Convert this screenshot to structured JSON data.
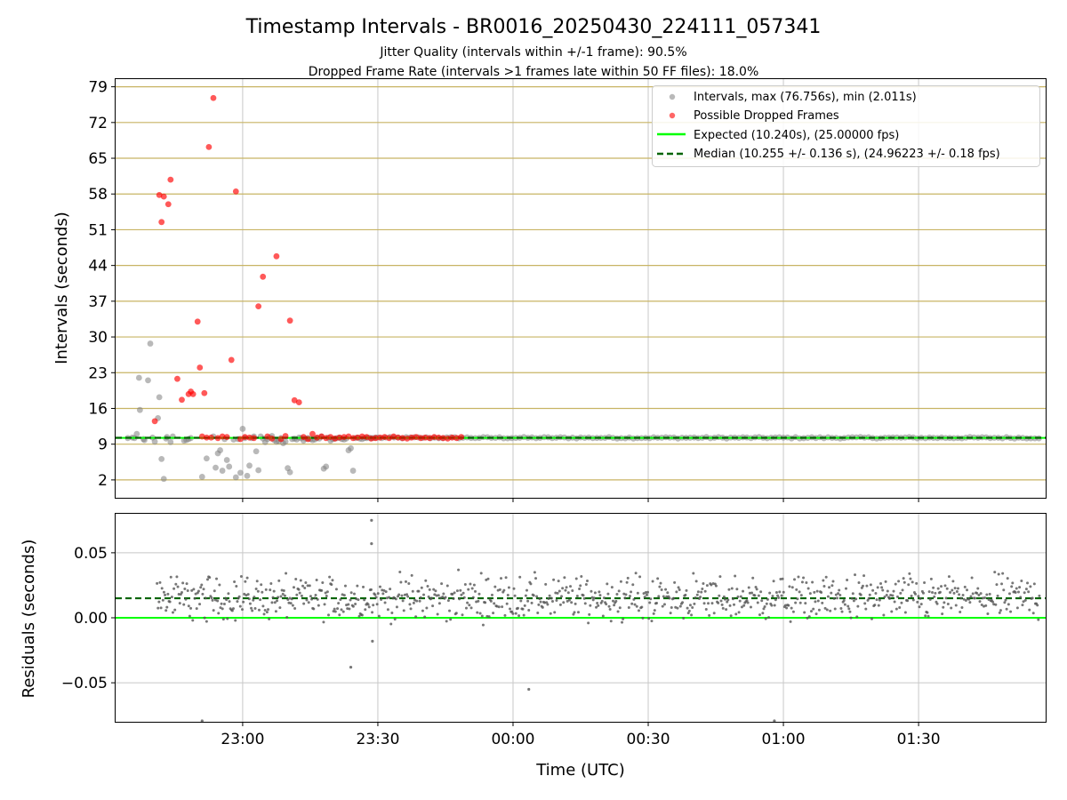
{
  "title": "Timestamp Intervals - BR0016_20250430_224111_057341",
  "subtitle1": "Jitter Quality (intervals within +/-1 frame): 90.5%",
  "subtitle2": "Dropped Frame Rate (intervals >1 frames late within 50 FF files): 18.0%",
  "colors": {
    "intervals": "#808080",
    "dropped": "#ff0000",
    "expected": "#00ff00",
    "median": "#006400",
    "hgrid_top": "#c8b464",
    "grid": "#c8c8c8",
    "residuals": "#555555"
  },
  "chart_data": [
    {
      "type": "scatter",
      "ylabel": "Intervals (seconds)",
      "ylim": [
        -1.5,
        80.5
      ],
      "y_ticks": [
        "2",
        "9",
        "16",
        "23",
        "30",
        "37",
        "44",
        "51",
        "58",
        "65",
        "72",
        "79"
      ],
      "grid": true,
      "legend_placement": "top-right",
      "legend": [
        "Intervals, max (76.756s), min (2.011s)",
        "Possible Dropped Frames",
        "Expected (10.240s), (25.00000 fps)",
        "Median (10.255 +/- 0.136 s), (24.96223 +/- 0.18 fps)"
      ],
      "expected_interval": 10.24,
      "median_interval": 10.255,
      "series": [
        {
          "name": "Intervals, max (76.756s), min (2.011s)",
          "x_minutes": [
            -25.5,
            -24.5,
            -24,
            -23.5,
            -23,
            -22.8,
            -22,
            -21.8,
            -21,
            -20.5,
            -20,
            -19.5,
            -18.8,
            -18.5,
            -18,
            -17.5,
            -17,
            -16.8,
            -16,
            -15.5,
            -13,
            -12.5,
            -12,
            -11.5,
            -9,
            -8,
            -6.5,
            -6,
            -5.5,
            -5,
            -4.5,
            -4,
            -3.5,
            -3,
            -2,
            -1.5,
            -1,
            -0.5,
            0,
            0.5,
            1,
            1.5,
            2,
            2.5,
            3,
            3.5,
            4,
            4.5,
            5,
            5.5,
            6,
            6.5,
            7,
            7.5,
            8,
            8.5,
            9,
            9.5,
            10,
            10.5,
            11,
            11.5,
            12,
            12.5,
            13,
            13.5,
            14,
            14.5,
            15,
            15.5,
            16,
            16.5,
            17,
            17.5,
            18,
            18.5,
            19,
            19.5,
            20,
            20.5,
            21,
            21.5,
            22,
            22.5,
            23,
            23.5,
            24,
            24.5,
            25,
            25.5,
            26,
            26.5,
            27,
            27.5,
            28,
            28.5,
            29,
            29.5
          ],
          "y_seconds": [
            10.2,
            10.3,
            10.2,
            11.0,
            22.0,
            15.7,
            10.0,
            9.8,
            21.5,
            28.7,
            10.3,
            9.5,
            14.1,
            18.2,
            6.1,
            2.2,
            10.1,
            10.4,
            9.4,
            10.5,
            9.7,
            9.8,
            10.0,
            10.2,
            2.6,
            6.2,
            10.5,
            4.4,
            7.2,
            7.8,
            3.8,
            10.0,
            5.9,
            4.6,
            9.9,
            2.5,
            10.0,
            3.4,
            12.0,
            10.2,
            2.8,
            4.8,
            10.2,
            10.5,
            7.6,
            3.9,
            10.5,
            10.1,
            9.4,
            10.0,
            10.3,
            10.6,
            9.8,
            9.5,
            9.6,
            10.2,
            9.2,
            9.5,
            4.3,
            3.5,
            10.0,
            10.1,
            9.9,
            10.3,
            10.2,
            9.7,
            10.1,
            10.2,
            10.0,
            9.8,
            9.9,
            10.2,
            10.1,
            10.5,
            4.2,
            4.6,
            10.3,
            9.7,
            10.0,
            10.1,
            10.2,
            10.3,
            10.0,
            9.9,
            10.1,
            7.8,
            8.2,
            3.8,
            10.2,
            10.3,
            10.1,
            10.0,
            10.2,
            10.2,
            10.3,
            10.2,
            10.2,
            10.3
          ]
        },
        {
          "name": "Possible Dropped Frames",
          "x_minutes": [
            -19.5,
            -18.5,
            -18,
            -17.5,
            -16.5,
            -16,
            -14.5,
            -13.5,
            -12,
            -11.5,
            -11,
            -10,
            -9.5,
            -9,
            -8.5,
            -8,
            -7.5,
            -7,
            -6.5,
            -5.5,
            -4.5,
            -3.5,
            -2.5,
            -1.5,
            -0.5,
            0.5,
            1.5,
            2.5,
            3.5,
            4.5,
            5.5,
            6.5,
            7.5,
            8.5,
            9.5,
            10.5,
            11.5,
            12.5,
            13.5,
            14.5,
            15.5,
            16.5,
            17.5,
            18.5,
            19.5,
            20.5,
            21.5,
            22.5,
            23.5,
            24.5,
            25.5,
            26.5,
            27.5,
            28.5,
            29.5,
            30.5,
            31.5,
            32.5,
            33.5,
            34.5,
            35.5,
            36.5,
            37.5,
            38.5,
            39.5,
            40.5,
            41.5,
            42.5,
            43.5,
            44.5,
            45.5,
            46.5,
            47.5,
            48.5
          ],
          "y_seconds": [
            13.5,
            57.8,
            52.5,
            57.5,
            56.0,
            60.8,
            21.8,
            17.7,
            18.8,
            19.3,
            18.8,
            33.0,
            24.0,
            10.5,
            19.0,
            10.3,
            67.2,
            10.3,
            76.8,
            10.2,
            10.5,
            10.4,
            25.5,
            58.5,
            10.0,
            10.4,
            10.3,
            10.2,
            36.0,
            41.8,
            10.5,
            10.1,
            45.8,
            10.0,
            10.6,
            33.2,
            17.6,
            17.2,
            10.4,
            10.0,
            11.0,
            10.3,
            10.5,
            10.2,
            10.4,
            10.1,
            10.3,
            10.4,
            10.5,
            10.2,
            10.3,
            10.5,
            10.4,
            10.1,
            10.2,
            10.3,
            10.4,
            10.2,
            10.5,
            10.3,
            10.2,
            10.1,
            10.3,
            10.4,
            10.2,
            10.3,
            10.2,
            10.4,
            10.3,
            10.2,
            10.1,
            10.3,
            10.2,
            10.4
          ]
        }
      ]
    },
    {
      "type": "scatter",
      "xlabel": "Time (UTC)",
      "ylabel": "Residuals (seconds)",
      "ylim": [
        -0.08,
        0.08
      ],
      "y_ticks": [
        "−0.05",
        "0.00",
        "0.05"
      ],
      "x_ticks": [
        "23:00",
        "23:30",
        "00:00",
        "00:30",
        "01:00",
        "01:30"
      ],
      "x_tick_minutes": [
        0,
        30,
        60,
        90,
        120,
        150
      ],
      "xlim_minutes": [
        -28.2,
        178.2
      ],
      "grid": true,
      "expected_residual": 0.0,
      "median_residual": 0.015,
      "series": [
        {
          "name": "Residuals",
          "x_range_minutes": [
            -19,
            177
          ],
          "typical_range": [
            -0.01,
            0.04
          ],
          "outliers": [
            [
              -9,
              -0.08
            ],
            [
              24,
              -0.038
            ],
            [
              28.6,
              0.075
            ],
            [
              28.6,
              0.057
            ],
            [
              28.8,
              -0.018
            ],
            [
              63.5,
              -0.055
            ],
            [
              118,
              -0.08
            ]
          ]
        }
      ]
    }
  ]
}
